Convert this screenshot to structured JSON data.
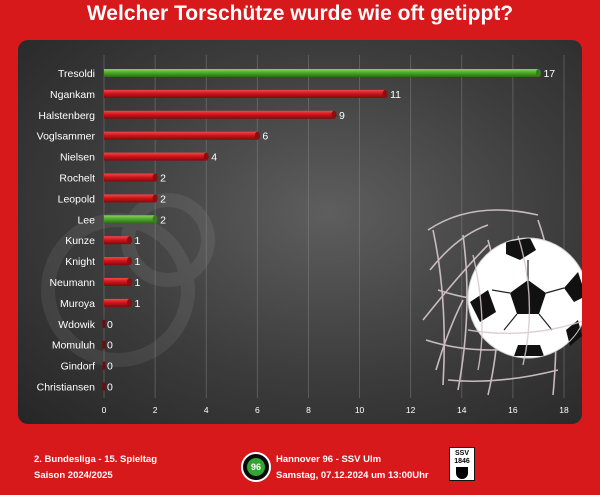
{
  "title": "Welcher Torschütze wurde wie oft getippt?",
  "footer": {
    "league": "2. Bundesliga - 15. Spieltag",
    "season": "Saison 2024/2025",
    "match": "Hannover 96 - SSV Ulm",
    "date": "Samstag, 07.12.2024 um 13:00Uhr",
    "home_logo_text": "96",
    "away_logo_text_top": "SSV",
    "away_logo_text_bottom": "1846"
  },
  "colors": {
    "red": "#d7191c",
    "green": "#58b431",
    "background": "#d7191c"
  },
  "chart_data": {
    "type": "bar",
    "orientation": "horizontal",
    "categories": [
      "Tresoldi",
      "Ngankam",
      "Halstenberg",
      "Voglsammer",
      "Nielsen",
      "Rochelt",
      "Leopold",
      "Lee",
      "Kunze",
      "Knight",
      "Neumann",
      "Muroya",
      "Wdowik",
      "Momuluh",
      "Gindorf",
      "Christiansen"
    ],
    "values": [
      17,
      11,
      9,
      6,
      4,
      2,
      2,
      2,
      1,
      1,
      1,
      1,
      0,
      0,
      0,
      0
    ],
    "bar_colors": [
      "green",
      "red",
      "red",
      "red",
      "red",
      "red",
      "red",
      "green",
      "red",
      "red",
      "red",
      "red",
      "red",
      "red",
      "red",
      "red"
    ],
    "xlim": [
      0,
      18
    ],
    "xticks": [
      0,
      2,
      4,
      6,
      8,
      10,
      12,
      14,
      16,
      18
    ],
    "data_labels": true,
    "grid": true
  }
}
